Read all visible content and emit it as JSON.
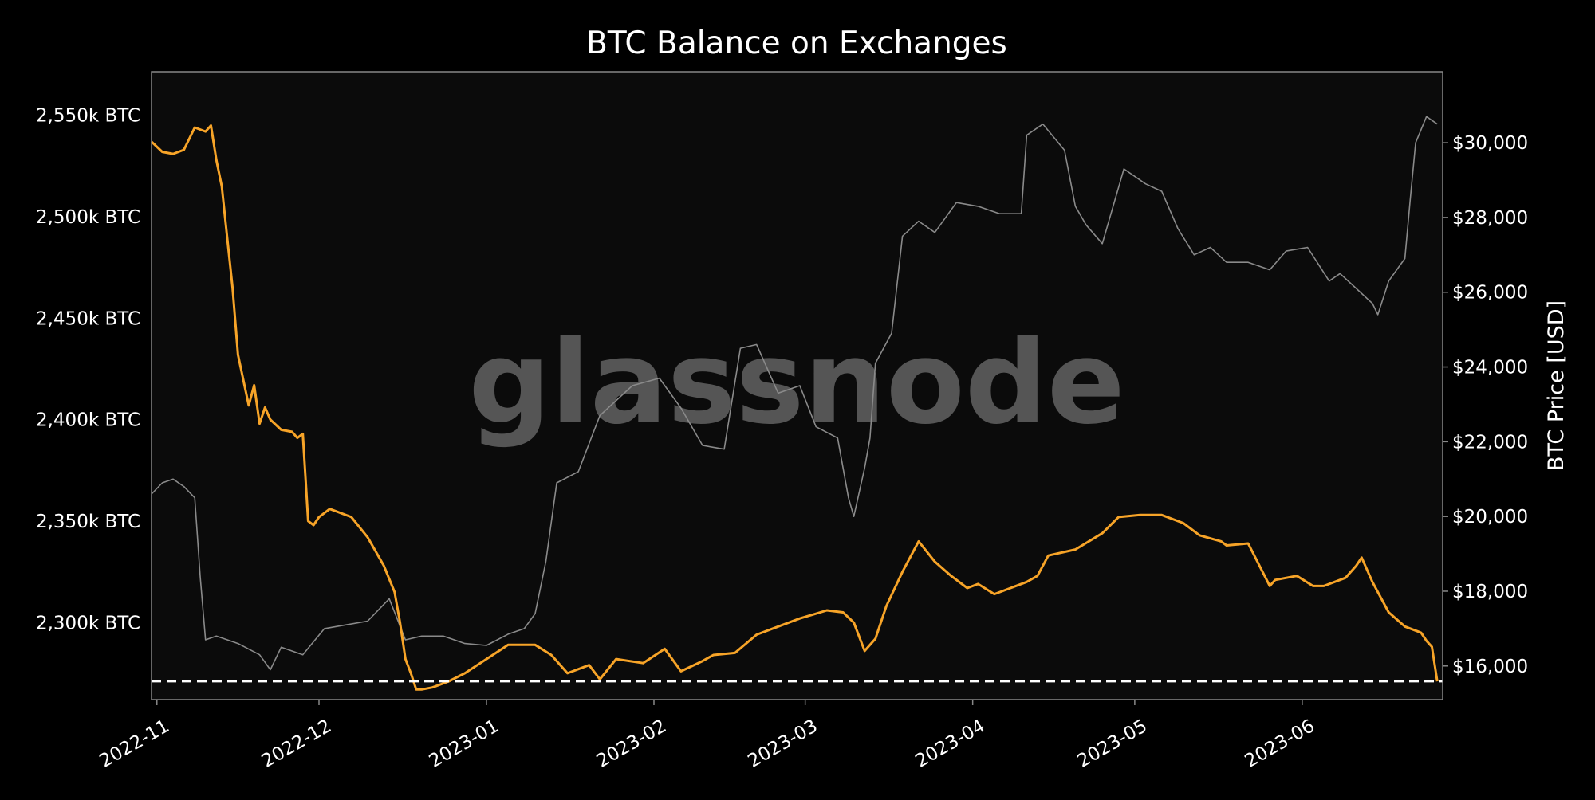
{
  "chart_data": {
    "type": "line",
    "title": "BTC Balance on Exchanges",
    "watermark": "glassnode",
    "ylabel_right": "BTC Price [USD]",
    "ylabel_left": "",
    "xlim": [
      "2022-10-31",
      "2023-06-27"
    ],
    "ylim_left": [
      2262,
      2571.5
    ],
    "ylim_right": [
      15100,
      31900
    ],
    "grid": false,
    "x_ticks": [
      {
        "date": "2022-11-01",
        "label": "2022-11"
      },
      {
        "date": "2022-12-01",
        "label": "2022-12"
      },
      {
        "date": "2023-01-01",
        "label": "2023-01"
      },
      {
        "date": "2023-02-01",
        "label": "2023-02"
      },
      {
        "date": "2023-03-01",
        "label": "2023-03"
      },
      {
        "date": "2023-04-01",
        "label": "2023-04"
      },
      {
        "date": "2023-05-01",
        "label": "2023-05"
      },
      {
        "date": "2023-06-01",
        "label": "2023-06"
      }
    ],
    "y_ticks_left": [
      {
        "value": 2300,
        "label": "2,300k BTC"
      },
      {
        "value": 2350,
        "label": "2,350k BTC"
      },
      {
        "value": 2400,
        "label": "2,400k BTC"
      },
      {
        "value": 2450,
        "label": "2,450k BTC"
      },
      {
        "value": 2500,
        "label": "2,500k BTC"
      },
      {
        "value": 2550,
        "label": "2,550k BTC"
      }
    ],
    "y_ticks_right": [
      {
        "value": 16000,
        "label": "$16,000"
      },
      {
        "value": 18000,
        "label": "$18,000"
      },
      {
        "value": 20000,
        "label": "$20,000"
      },
      {
        "value": 22000,
        "label": "$22,000"
      },
      {
        "value": 24000,
        "label": "$24,000"
      },
      {
        "value": 26000,
        "label": "$26,000"
      },
      {
        "value": 28000,
        "label": "$28,000"
      },
      {
        "value": 30000,
        "label": "$30,000"
      }
    ],
    "reference_line": {
      "value": 2271,
      "axis": "left",
      "style": "dashed"
    },
    "colors": {
      "balance": "#f7a428",
      "price": "#8a8a8a",
      "background": "#0b0b0b",
      "axes": "#888888",
      "reference": "#ffffff"
    },
    "series": [
      {
        "axis": "left",
        "x": [
          "2022-10-31",
          "2022-11-02",
          "2022-11-04",
          "2022-11-06",
          "2022-11-08",
          "2022-11-10",
          "2022-11-11",
          "2022-11-12",
          "2022-11-13",
          "2022-11-14",
          "2022-11-15",
          "2022-11-16",
          "2022-11-18",
          "2022-11-19",
          "2022-11-20",
          "2022-11-21",
          "2022-11-22",
          "2022-11-24",
          "2022-11-26",
          "2022-11-27",
          "2022-11-28",
          "2022-11-29",
          "2022-11-30",
          "2022-12-01",
          "2022-12-03",
          "2022-12-07",
          "2022-12-10",
          "2022-12-13",
          "2022-12-15",
          "2022-12-16",
          "2022-12-17",
          "2022-12-18",
          "2022-12-19",
          "2022-12-20",
          "2022-12-22",
          "2022-12-25",
          "2022-12-28",
          "2023-01-01",
          "2023-01-05",
          "2023-01-10",
          "2023-01-13",
          "2023-01-16",
          "2023-01-20",
          "2023-01-22",
          "2023-01-25",
          "2023-01-30",
          "2023-02-03",
          "2023-02-06",
          "2023-02-10",
          "2023-02-12",
          "2023-02-16",
          "2023-02-20",
          "2023-02-24",
          "2023-02-28",
          "2023-03-05",
          "2023-03-08",
          "2023-03-10",
          "2023-03-12",
          "2023-03-14",
          "2023-03-16",
          "2023-03-19",
          "2023-03-22",
          "2023-03-25",
          "2023-03-28",
          "2023-03-31",
          "2023-04-02",
          "2023-04-05",
          "2023-04-08",
          "2023-04-11",
          "2023-04-13",
          "2023-04-15",
          "2023-04-20",
          "2023-04-25",
          "2023-04-28",
          "2023-05-02",
          "2023-05-06",
          "2023-05-10",
          "2023-05-13",
          "2023-05-17",
          "2023-05-18",
          "2023-05-22",
          "2023-05-26",
          "2023-05-27",
          "2023-05-31",
          "2023-06-03",
          "2023-06-05",
          "2023-06-09",
          "2023-06-11",
          "2023-06-12",
          "2023-06-14",
          "2023-06-17",
          "2023-06-20",
          "2023-06-23",
          "2023-06-24",
          "2023-06-25",
          "2023-06-26"
        ],
        "values": [
          2537,
          2532,
          2531,
          2533,
          2544,
          2542,
          2545,
          2528,
          2515,
          2490,
          2465,
          2432,
          2407,
          2417,
          2398,
          2406,
          2400,
          2395,
          2394,
          2391,
          2393,
          2350,
          2348,
          2352,
          2356,
          2352,
          2342,
          2328,
          2315,
          2300,
          2282,
          2275,
          2267,
          2267,
          2268,
          2271,
          2275,
          2282,
          2289,
          2289,
          2284,
          2275,
          2279,
          2272,
          2282,
          2280,
          2287,
          2276,
          2281,
          2284,
          2285,
          2294,
          2298,
          2302,
          2306,
          2305,
          2300,
          2286,
          2292,
          2308,
          2325,
          2340,
          2330,
          2323,
          2317,
          2319,
          2314,
          2317,
          2320,
          2323,
          2333,
          2336,
          2344,
          2352,
          2353,
          2353,
          2349,
          2343,
          2340,
          2338,
          2339,
          2318,
          2321,
          2323,
          2318,
          2318,
          2322,
          2328,
          2332,
          2320,
          2305,
          2298,
          2295,
          2291,
          2288,
          2271
        ]
      },
      {
        "axis": "right",
        "x": [
          "2022-10-31",
          "2022-11-02",
          "2022-11-04",
          "2022-11-06",
          "2022-11-08",
          "2022-11-09",
          "2022-11-10",
          "2022-11-12",
          "2022-11-16",
          "2022-11-20",
          "2022-11-22",
          "2022-11-24",
          "2022-11-28",
          "2022-12-02",
          "2022-12-06",
          "2022-12-10",
          "2022-12-14",
          "2022-12-17",
          "2022-12-20",
          "2022-12-24",
          "2022-12-28",
          "2023-01-01",
          "2023-01-05",
          "2023-01-08",
          "2023-01-10",
          "2023-01-12",
          "2023-01-14",
          "2023-01-18",
          "2023-01-22",
          "2023-01-28",
          "2023-02-02",
          "2023-02-06",
          "2023-02-10",
          "2023-02-14",
          "2023-02-17",
          "2023-02-20",
          "2023-02-24",
          "2023-02-28",
          "2023-03-03",
          "2023-03-07",
          "2023-03-09",
          "2023-03-10",
          "2023-03-12",
          "2023-03-13",
          "2023-03-14",
          "2023-03-17",
          "2023-03-19",
          "2023-03-22",
          "2023-03-25",
          "2023-03-29",
          "2023-04-02",
          "2023-04-06",
          "2023-04-10",
          "2023-04-11",
          "2023-04-14",
          "2023-04-18",
          "2023-04-20",
          "2023-04-22",
          "2023-04-25",
          "2023-04-29",
          "2023-05-03",
          "2023-05-06",
          "2023-05-09",
          "2023-05-12",
          "2023-05-15",
          "2023-05-18",
          "2023-05-22",
          "2023-05-26",
          "2023-05-29",
          "2023-06-02",
          "2023-06-06",
          "2023-06-08",
          "2023-06-11",
          "2023-06-14",
          "2023-06-15",
          "2023-06-17",
          "2023-06-19",
          "2023-06-20",
          "2023-06-21",
          "2023-06-22",
          "2023-06-24",
          "2023-06-26"
        ],
        "values": [
          20600,
          20900,
          21000,
          20800,
          20500,
          18400,
          16700,
          16800,
          16600,
          16300,
          15900,
          16500,
          16300,
          17000,
          17100,
          17200,
          17800,
          16700,
          16800,
          16800,
          16600,
          16550,
          16850,
          17000,
          17400,
          18800,
          20900,
          21200,
          22700,
          23500,
          23700,
          22900,
          21900,
          21800,
          24500,
          24600,
          23300,
          23500,
          22400,
          22100,
          20500,
          20000,
          21300,
          22100,
          24100,
          24900,
          27500,
          27900,
          27600,
          28400,
          28300,
          28100,
          28100,
          30200,
          30500,
          29800,
          28300,
          27800,
          27300,
          29300,
          28900,
          28700,
          27700,
          27000,
          27200,
          26800,
          26800,
          26600,
          27100,
          27200,
          26300,
          26500,
          26100,
          25700,
          25400,
          26300,
          26700,
          26900,
          28500,
          30000,
          30700,
          30500
        ]
      }
    ]
  }
}
